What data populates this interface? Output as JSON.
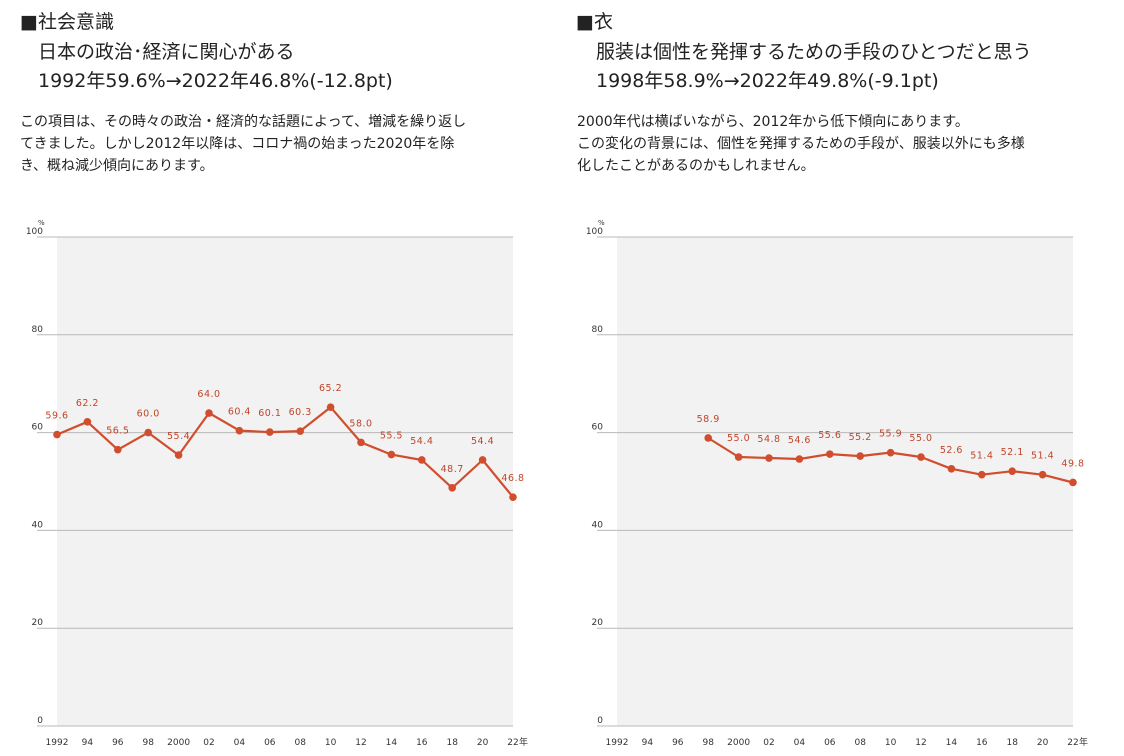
{
  "left": {
    "heading": "■社会意識",
    "subtitle_line1": "日本の政治･経済に関心がある",
    "subtitle_line2": "1992年59.6%→2022年46.8%(-12.8pt)",
    "description": [
      "この項目は、その時々の政治・経済的な話題によって、増減を繰り返し",
      "てきました。しかし2012年以降は、コロナ禍の始まった2020年を除",
      "き、概ね減少傾向にあります。"
    ]
  },
  "right": {
    "heading": "■衣",
    "subtitle_line1": "服装は個性を発揮するための手段のひとつだと思う",
    "subtitle_line2": "1998年58.9%→2022年49.8%(-9.1pt)",
    "description": [
      "2000年代は横ばいながら、2012年から低下傾向にあります。",
      "この変化の背景には、個性を発揮するための手段が、服装以外にも多様",
      "化したことがあるのかもしれません。"
    ]
  },
  "colors": {
    "line": "#d04e2e",
    "label": "#c0452a",
    "plot_bg": "#f2f2f2",
    "grid": "#b8b8b8"
  },
  "chart_data": [
    {
      "type": "line",
      "unit": "%",
      "x_unit": "年",
      "ylim": [
        0,
        100
      ],
      "yticks": [
        "0",
        "20",
        "40",
        "60",
        "80",
        "100"
      ],
      "xticks": [
        "1992",
        "94",
        "96",
        "98",
        "2000",
        "02",
        "04",
        "06",
        "08",
        "10",
        "12",
        "14",
        "16",
        "18",
        "20",
        "22"
      ],
      "grid": true,
      "series": [
        {
          "x": [
            1992,
            1994,
            1996,
            1998,
            2000,
            2002,
            2004,
            2006,
            2008,
            2010,
            2012,
            2014,
            2016,
            2018,
            2020,
            2022
          ],
          "values": [
            59.6,
            62.2,
            56.5,
            60.0,
            55.4,
            64.0,
            60.4,
            60.1,
            60.3,
            65.2,
            58.0,
            55.5,
            54.4,
            48.7,
            54.4,
            46.8
          ],
          "labels": [
            "59.6",
            "62.2",
            "56.5",
            "60.0",
            "55.4",
            "64.0",
            "60.4",
            "60.1",
            "60.3",
            "65.2",
            "58.0",
            "55.5",
            "54.4",
            "48.7",
            "54.4",
            "46.8"
          ]
        }
      ]
    },
    {
      "type": "line",
      "unit": "%",
      "x_unit": "年",
      "ylim": [
        0,
        100
      ],
      "yticks": [
        "0",
        "20",
        "40",
        "60",
        "80",
        "100"
      ],
      "xticks": [
        "1992",
        "94",
        "96",
        "98",
        "2000",
        "02",
        "04",
        "06",
        "08",
        "10",
        "12",
        "14",
        "16",
        "18",
        "20",
        "22"
      ],
      "grid": true,
      "series": [
        {
          "x": [
            1998,
            2000,
            2002,
            2004,
            2006,
            2008,
            2010,
            2012,
            2014,
            2016,
            2018,
            2020,
            2022
          ],
          "values": [
            58.9,
            55.0,
            54.8,
            54.6,
            55.6,
            55.2,
            55.9,
            55.0,
            52.6,
            51.4,
            52.1,
            51.4,
            49.8
          ],
          "labels": [
            "58.9",
            "55.0",
            "54.8",
            "54.6",
            "55.6",
            "55.2",
            "55.9",
            "55.0",
            "52.6",
            "51.4",
            "52.1",
            "51.4",
            "49.8"
          ]
        }
      ]
    }
  ]
}
